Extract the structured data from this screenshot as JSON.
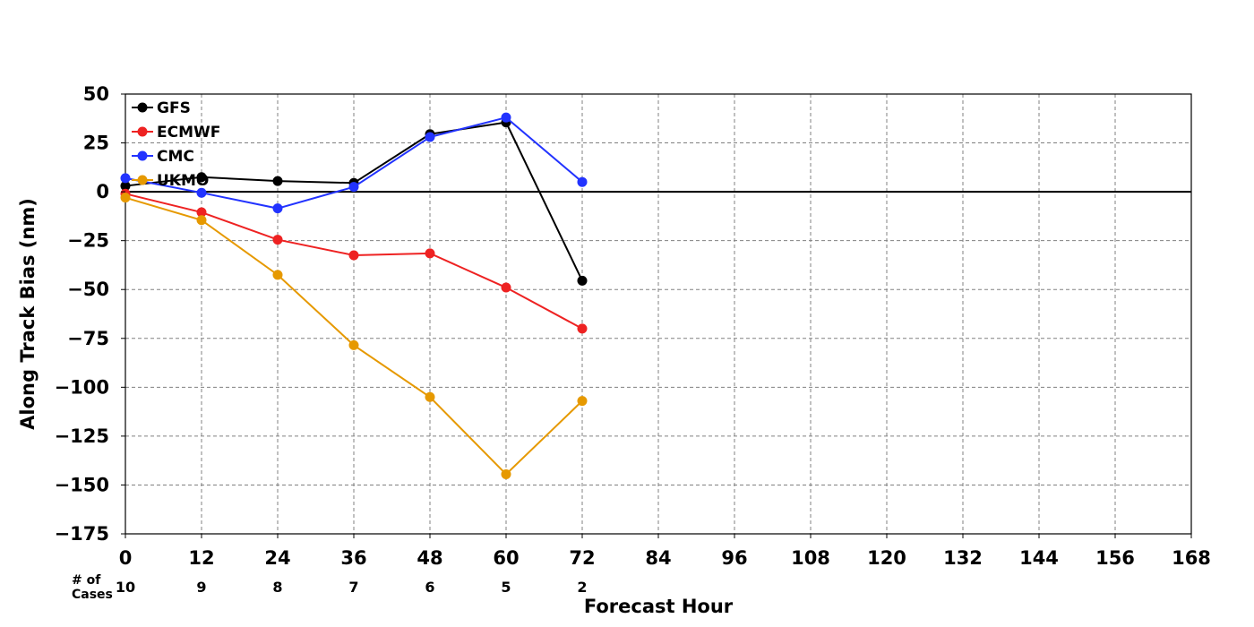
{
  "chart_data": {
    "type": "line",
    "xlabel": "Forecast Hour",
    "ylabel": "Along Track Bias (nm)",
    "xlim": [
      0,
      168
    ],
    "ylim": [
      -175,
      50
    ],
    "x_ticks": [
      0,
      12,
      24,
      36,
      48,
      60,
      72,
      84,
      96,
      108,
      120,
      132,
      144,
      156,
      168
    ],
    "y_ticks": [
      50,
      25,
      0,
      -25,
      -50,
      -75,
      -100,
      -125,
      -150,
      -175
    ],
    "grid": true,
    "legend_position": "top-left",
    "x": [
      0,
      12,
      24,
      36,
      48,
      60,
      72
    ],
    "series": [
      {
        "name": "GFS",
        "color": "#000000",
        "values": [
          3,
          7.5,
          5.5,
          4.5,
          29.5,
          35.5,
          -45.5
        ]
      },
      {
        "name": "ECMWF",
        "color": "#ee2222",
        "values": [
          -1,
          -10.5,
          -24.5,
          -32.5,
          -31.5,
          -49,
          -70
        ]
      },
      {
        "name": "CMC",
        "color": "#2233ff",
        "values": [
          7,
          -0.5,
          -8.5,
          2.5,
          28,
          38,
          5
        ]
      },
      {
        "name": "UKMO",
        "color": "#e69900",
        "values": [
          -3,
          -14.5,
          -42.5,
          -78.5,
          -105,
          -144.5,
          -107
        ]
      }
    ],
    "cases": {
      "label_line1": "# of",
      "label_line2": "Cases",
      "hours": [
        0,
        12,
        24,
        36,
        48,
        60,
        72
      ],
      "counts": [
        10,
        9,
        8,
        7,
        6,
        5,
        2
      ]
    }
  }
}
